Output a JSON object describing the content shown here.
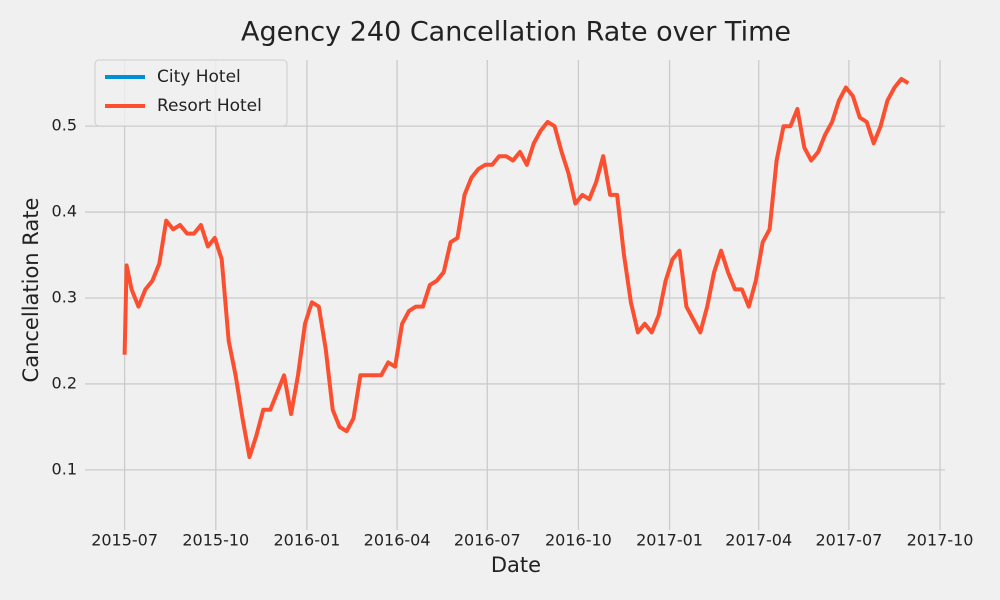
{
  "chart_data": {
    "type": "line",
    "title": "Agency 240 Cancellation Rate over Time",
    "x_label": "Date",
    "y_label": "Cancellation Rate",
    "x": [
      "2015-07-01",
      "2015-07-03",
      "2015-07-08",
      "2015-07-15",
      "2015-07-22",
      "2015-07-29",
      "2015-08-05",
      "2015-08-12",
      "2015-08-19",
      "2015-08-26",
      "2015-09-02",
      "2015-09-09",
      "2015-09-16",
      "2015-09-23",
      "2015-09-30",
      "2015-10-07",
      "2015-10-14",
      "2015-10-21",
      "2015-10-28",
      "2015-11-04",
      "2015-11-11",
      "2015-11-18",
      "2015-11-25",
      "2015-12-02",
      "2015-12-09",
      "2015-12-16",
      "2015-12-23",
      "2015-12-30",
      "2016-01-06",
      "2016-01-13",
      "2016-01-20",
      "2016-01-27",
      "2016-02-03",
      "2016-02-10",
      "2016-02-17",
      "2016-02-24",
      "2016-03-02",
      "2016-03-09",
      "2016-03-16",
      "2016-03-23",
      "2016-03-30",
      "2016-04-06",
      "2016-04-13",
      "2016-04-20",
      "2016-04-27",
      "2016-05-04",
      "2016-05-11",
      "2016-05-18",
      "2016-05-25",
      "2016-06-01",
      "2016-06-08",
      "2016-06-15",
      "2016-06-22",
      "2016-06-29",
      "2016-07-06",
      "2016-07-13",
      "2016-07-20",
      "2016-07-27",
      "2016-08-03",
      "2016-08-10",
      "2016-08-17",
      "2016-08-24",
      "2016-08-31",
      "2016-09-07",
      "2016-09-14",
      "2016-09-21",
      "2016-09-28",
      "2016-10-05",
      "2016-10-12",
      "2016-10-19",
      "2016-10-26",
      "2016-11-02",
      "2016-11-09",
      "2016-11-16",
      "2016-11-23",
      "2016-11-30",
      "2016-12-07",
      "2016-12-14",
      "2016-12-21",
      "2016-12-28",
      "2017-01-04",
      "2017-01-11",
      "2017-01-18",
      "2017-01-25",
      "2017-02-01",
      "2017-02-08",
      "2017-02-15",
      "2017-02-22",
      "2017-03-01",
      "2017-03-08",
      "2017-03-15",
      "2017-03-22",
      "2017-03-29",
      "2017-04-05",
      "2017-04-12",
      "2017-04-19",
      "2017-04-26",
      "2017-05-03",
      "2017-05-10",
      "2017-05-17",
      "2017-05-24",
      "2017-05-31",
      "2017-06-07",
      "2017-06-14",
      "2017-06-21",
      "2017-06-28",
      "2017-07-05",
      "2017-07-12",
      "2017-07-19",
      "2017-07-26",
      "2017-08-02",
      "2017-08-09",
      "2017-08-16",
      "2017-08-23",
      "2017-08-30"
    ],
    "series": [
      {
        "name": "City Hotel",
        "color": "#008fd5",
        "values": [
          null,
          null,
          null,
          null,
          null,
          null,
          null,
          null,
          null,
          null,
          null,
          null,
          null,
          null,
          null,
          null,
          null,
          null,
          null,
          null,
          null,
          null,
          null,
          null,
          null,
          null,
          null,
          null,
          null,
          null,
          null,
          null,
          null,
          null,
          null,
          null,
          null,
          null,
          null,
          null,
          null,
          null,
          null,
          null,
          null,
          null,
          null,
          null,
          null,
          null,
          null,
          null,
          null,
          null,
          null,
          null,
          null,
          null,
          null,
          null,
          null,
          null,
          null,
          null,
          null,
          null,
          null,
          null,
          null,
          null,
          null,
          null,
          null,
          null,
          null,
          null,
          null,
          null,
          null,
          null,
          null,
          null,
          null,
          null,
          null,
          null,
          null,
          null,
          null,
          null,
          null,
          null,
          null,
          null,
          null,
          null,
          null,
          null,
          null,
          null,
          null,
          null,
          null,
          null,
          null,
          null,
          null,
          null,
          null,
          null,
          null,
          null,
          null,
          null,
          null
        ]
      },
      {
        "name": "Resort Hotel",
        "color": "#fc4f30",
        "values": [
          0.234,
          0.338,
          0.31,
          0.29,
          0.31,
          0.32,
          0.34,
          0.39,
          0.38,
          0.385,
          0.375,
          0.375,
          0.385,
          0.36,
          0.37,
          0.345,
          0.25,
          0.21,
          0.16,
          0.115,
          0.14,
          0.17,
          0.17,
          0.19,
          0.21,
          0.165,
          0.21,
          0.27,
          0.295,
          0.29,
          0.24,
          0.17,
          0.15,
          0.145,
          0.16,
          0.21,
          0.21,
          0.21,
          0.21,
          0.225,
          0.22,
          0.27,
          0.285,
          0.29,
          0.29,
          0.315,
          0.32,
          0.33,
          0.365,
          0.37,
          0.42,
          0.44,
          0.45,
          0.455,
          0.455,
          0.465,
          0.465,
          0.46,
          0.47,
          0.455,
          0.48,
          0.495,
          0.505,
          0.5,
          0.47,
          0.445,
          0.41,
          0.42,
          0.415,
          0.435,
          0.465,
          0.42,
          0.42,
          0.35,
          0.295,
          0.26,
          0.27,
          0.26,
          0.28,
          0.32,
          0.345,
          0.355,
          0.29,
          0.275,
          0.26,
          0.29,
          0.33,
          0.355,
          0.33,
          0.31,
          0.31,
          0.29,
          0.32,
          0.365,
          0.38,
          0.46,
          0.5,
          0.5,
          0.52,
          0.475,
          0.46,
          0.47,
          0.49,
          0.505,
          0.53,
          0.545,
          0.535,
          0.51,
          0.505,
          0.48,
          0.5,
          0.53,
          0.545,
          0.555,
          0.55
        ]
      }
    ],
    "xlim": [
      "2015-05-22",
      "2017-10-06"
    ],
    "xticks": [
      {
        "value": "2015-07-01",
        "label": "2015-07"
      },
      {
        "value": "2015-10-01",
        "label": "2015-10"
      },
      {
        "value": "2016-01-01",
        "label": "2016-01"
      },
      {
        "value": "2016-04-01",
        "label": "2016-04"
      },
      {
        "value": "2016-07-01",
        "label": "2016-07"
      },
      {
        "value": "2016-10-01",
        "label": "2016-10"
      },
      {
        "value": "2017-01-01",
        "label": "2017-01"
      },
      {
        "value": "2017-04-01",
        "label": "2017-04"
      },
      {
        "value": "2017-07-01",
        "label": "2017-07"
      },
      {
        "value": "2017-10-01",
        "label": "2017-10"
      }
    ],
    "ylim": [
      0.03,
      0.577
    ],
    "yticks": [
      0.1,
      0.2,
      0.3,
      0.4,
      0.5
    ],
    "grid": true,
    "legend": "upper left"
  }
}
